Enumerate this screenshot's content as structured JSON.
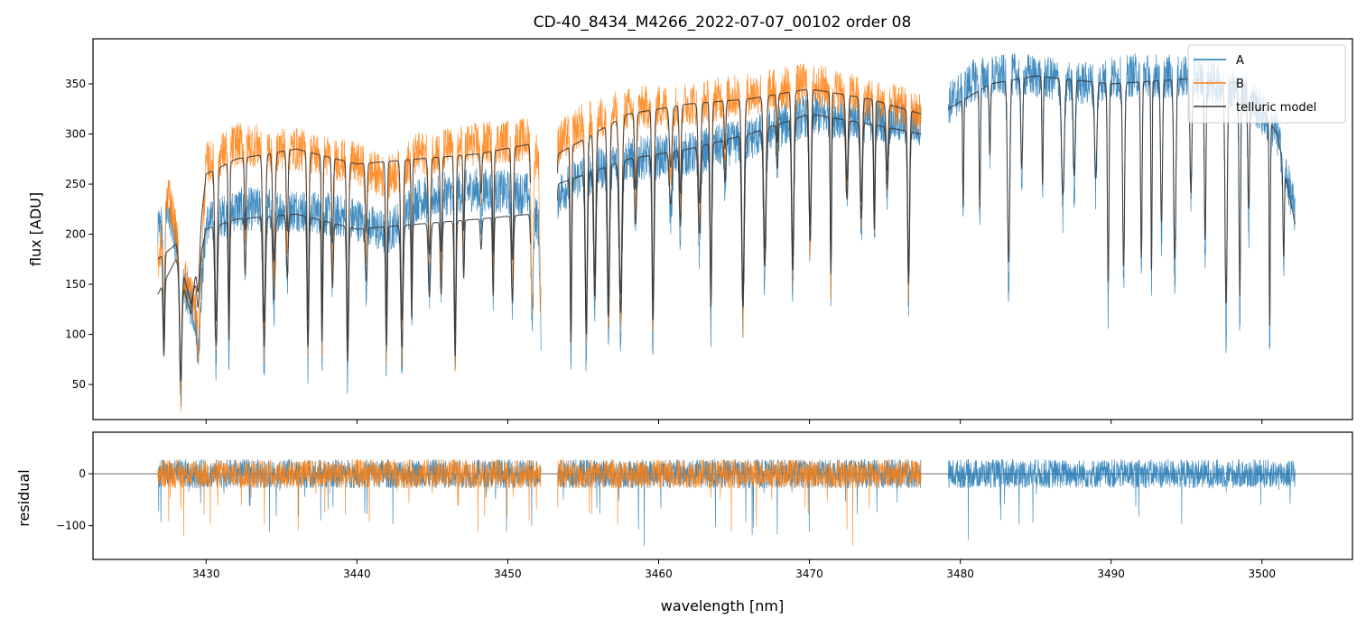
{
  "chart_data": [
    {
      "type": "line",
      "panel": "spectrum",
      "title": "CD-40_8434_M4266_2022-07-07_00102  order 08",
      "xlabel": "",
      "ylabel": "flux [ADU]",
      "xlim": [
        3422.5,
        3506.0
      ],
      "ylim": [
        15,
        395
      ],
      "yticks": [
        50,
        100,
        150,
        200,
        250,
        300,
        350
      ],
      "ytick_labels": [
        "50",
        "100",
        "150",
        "200",
        "250",
        "300",
        "350"
      ],
      "xticks": [
        3430,
        3440,
        3450,
        3460,
        3470,
        3480,
        3490,
        3500
      ],
      "legend": {
        "location": "upper right",
        "entries": [
          "A",
          "B",
          "telluric model"
        ]
      },
      "series": [
        {
          "name": "A",
          "color": "#1f77b4",
          "segments": [
            {
              "x": [
                3426.8,
                3427.5,
                3428.5,
                3429.5,
                3430.0,
                3432.0,
                3436.0,
                3440.0,
                3442.0,
                3444.0,
                3448.0,
                3451.5,
                3452.2
              ],
              "y": [
                200,
                230,
                150,
                110,
                210,
                225,
                225,
                215,
                200,
                235,
                245,
                240,
                200
              ]
            },
            {
              "x": [
                3453.3,
                3455.0,
                3458.0,
                3462.0,
                3466.0,
                3470.0,
                3474.0,
                3477.4
              ],
              "y": [
                240,
                260,
                275,
                280,
                295,
                320,
                315,
                310
              ]
            },
            {
              "x": [
                3479.2,
                3481.0,
                3484.0,
                3488.0,
                3492.0,
                3496.0,
                3499.0,
                3501.0,
                3502.2
              ],
              "y": [
                330,
                355,
                360,
                350,
                360,
                355,
                340,
                300,
                220
              ]
            }
          ]
        },
        {
          "name": "B",
          "color": "#ff7f0e",
          "segments": [
            {
              "x": [
                3426.8,
                3427.5,
                3428.5,
                3429.5,
                3430.0,
                3432.0,
                3436.0,
                3440.0,
                3442.0,
                3444.0,
                3448.0,
                3451.5,
                3452.2
              ],
              "y": [
                170,
                245,
                160,
                120,
                270,
                290,
                285,
                270,
                255,
                280,
                290,
                295,
                270
              ]
            },
            {
              "x": [
                3453.3,
                3455.0,
                3458.0,
                3462.0,
                3466.0,
                3470.0,
                3474.0,
                3477.4
              ],
              "y": [
                290,
                310,
                325,
                330,
                340,
                350,
                335,
                320
              ]
            }
          ]
        },
        {
          "name": "telluric model",
          "color": "#333333",
          "segments": [
            {
              "x": [
                3426.8,
                3428.0,
                3429.0,
                3430.0,
                3432.0,
                3436.0,
                3440.0,
                3444.0,
                3448.0,
                3451.5
              ],
              "y": [
                175,
                190,
                130,
                205,
                215,
                220,
                205,
                210,
                215,
                220
              ]
            },
            {
              "x": [
                3426.8,
                3428.0,
                3429.0,
                3430.0,
                3432.0,
                3436.0,
                3440.0,
                3444.0,
                3448.0,
                3451.5
              ],
              "y": [
                140,
                175,
                120,
                260,
                275,
                285,
                270,
                275,
                280,
                290
              ]
            },
            {
              "x": [
                3453.3,
                3458.0,
                3462.0,
                3466.0,
                3470.0,
                3474.0,
                3477.4
              ],
              "y": [
                250,
                275,
                285,
                300,
                320,
                310,
                300
              ]
            },
            {
              "x": [
                3453.3,
                3458.0,
                3462.0,
                3466.0,
                3470.0,
                3474.0,
                3477.4
              ],
              "y": [
                280,
                320,
                330,
                335,
                345,
                335,
                320
              ]
            },
            {
              "x": [
                3479.2,
                3482.0,
                3485.0,
                3490.0,
                3495.0,
                3499.0,
                3501.0,
                3502.2
              ],
              "y": [
                325,
                350,
                358,
                350,
                355,
                350,
                300,
                210
              ]
            }
          ]
        }
      ]
    },
    {
      "type": "line",
      "panel": "residual",
      "xlabel": "wavelength [nm]",
      "ylabel": "residual",
      "xlim": [
        3422.5,
        3506.0
      ],
      "ylim": [
        -165,
        80
      ],
      "yticks": [
        -100,
        0
      ],
      "ytick_labels": [
        "−100",
        "0"
      ],
      "xticks": [
        3430,
        3440,
        3450,
        3460,
        3470,
        3480,
        3490,
        3500
      ],
      "xtick_labels": [
        "3430",
        "3440",
        "3450",
        "3460",
        "3470",
        "3480",
        "3490",
        "3500"
      ],
      "reference_line": 0,
      "series": [
        {
          "name": "A",
          "color": "#1f77b4",
          "segments": [
            {
              "x": [
                3426.8,
                3452.2
              ],
              "y": [
                0,
                0
              ]
            },
            {
              "x": [
                3453.3,
                3477.4
              ],
              "y": [
                0,
                0
              ]
            },
            {
              "x": [
                3479.2,
                3502.2
              ],
              "y": [
                0,
                0
              ]
            }
          ]
        },
        {
          "name": "B",
          "color": "#ff7f0e",
          "segments": [
            {
              "x": [
                3426.8,
                3452.2
              ],
              "y": [
                0,
                0
              ]
            },
            {
              "x": [
                3453.3,
                3477.4
              ],
              "y": [
                0,
                0
              ]
            }
          ]
        }
      ]
    }
  ]
}
